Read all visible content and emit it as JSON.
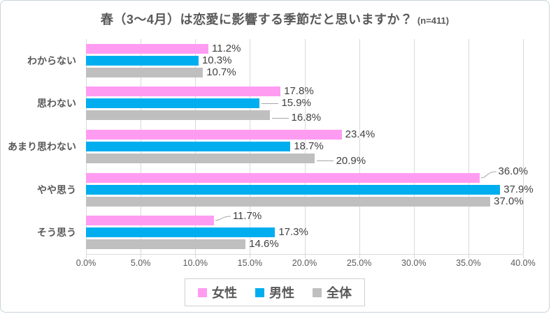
{
  "title": {
    "text": "春（3〜4月）は恋愛に影響する季節だと思いますか？",
    "note": "(n=411)"
  },
  "chart_data": {
    "type": "bar",
    "orientation": "horizontal",
    "title": "春（3〜4月）は恋愛に影響する季節だと思いますか？",
    "sample_note": "(n=411)",
    "categories": [
      "わからない",
      "思わない",
      "あまり思わない",
      "やや思う",
      "そう思う"
    ],
    "series": [
      {
        "name": "女性",
        "color": "#FF9CF2",
        "values": [
          11.2,
          17.8,
          23.4,
          36.0,
          11.7
        ]
      },
      {
        "name": "男性",
        "color": "#00AEEF",
        "values": [
          10.3,
          15.9,
          18.7,
          37.9,
          17.3
        ]
      },
      {
        "name": "全体",
        "color": "#BFBFBF",
        "values": [
          10.7,
          16.8,
          20.9,
          37.0,
          14.6
        ]
      }
    ],
    "value_label_suffix": "%",
    "xlim": [
      0,
      40
    ],
    "x_ticks": [
      "0.0%",
      "5.0%",
      "10.0%",
      "15.0%",
      "20.0%",
      "25.0%",
      "30.0%",
      "35.0%",
      "40.0%"
    ],
    "grid": true,
    "legend_position": "bottom",
    "leader_lines": {
      "女性": [
        "none",
        "none",
        "none",
        "curve",
        "curve-sm"
      ],
      "男性": [
        "none",
        "line",
        "none",
        "none",
        "none"
      ],
      "全体": [
        "none",
        "line-down",
        "line-down",
        "none",
        "none"
      ]
    }
  },
  "colors": {
    "grid": "#D9D9D9",
    "axis_text": "#595959",
    "value_text": "#404040",
    "leader": "#A6A6A6"
  }
}
